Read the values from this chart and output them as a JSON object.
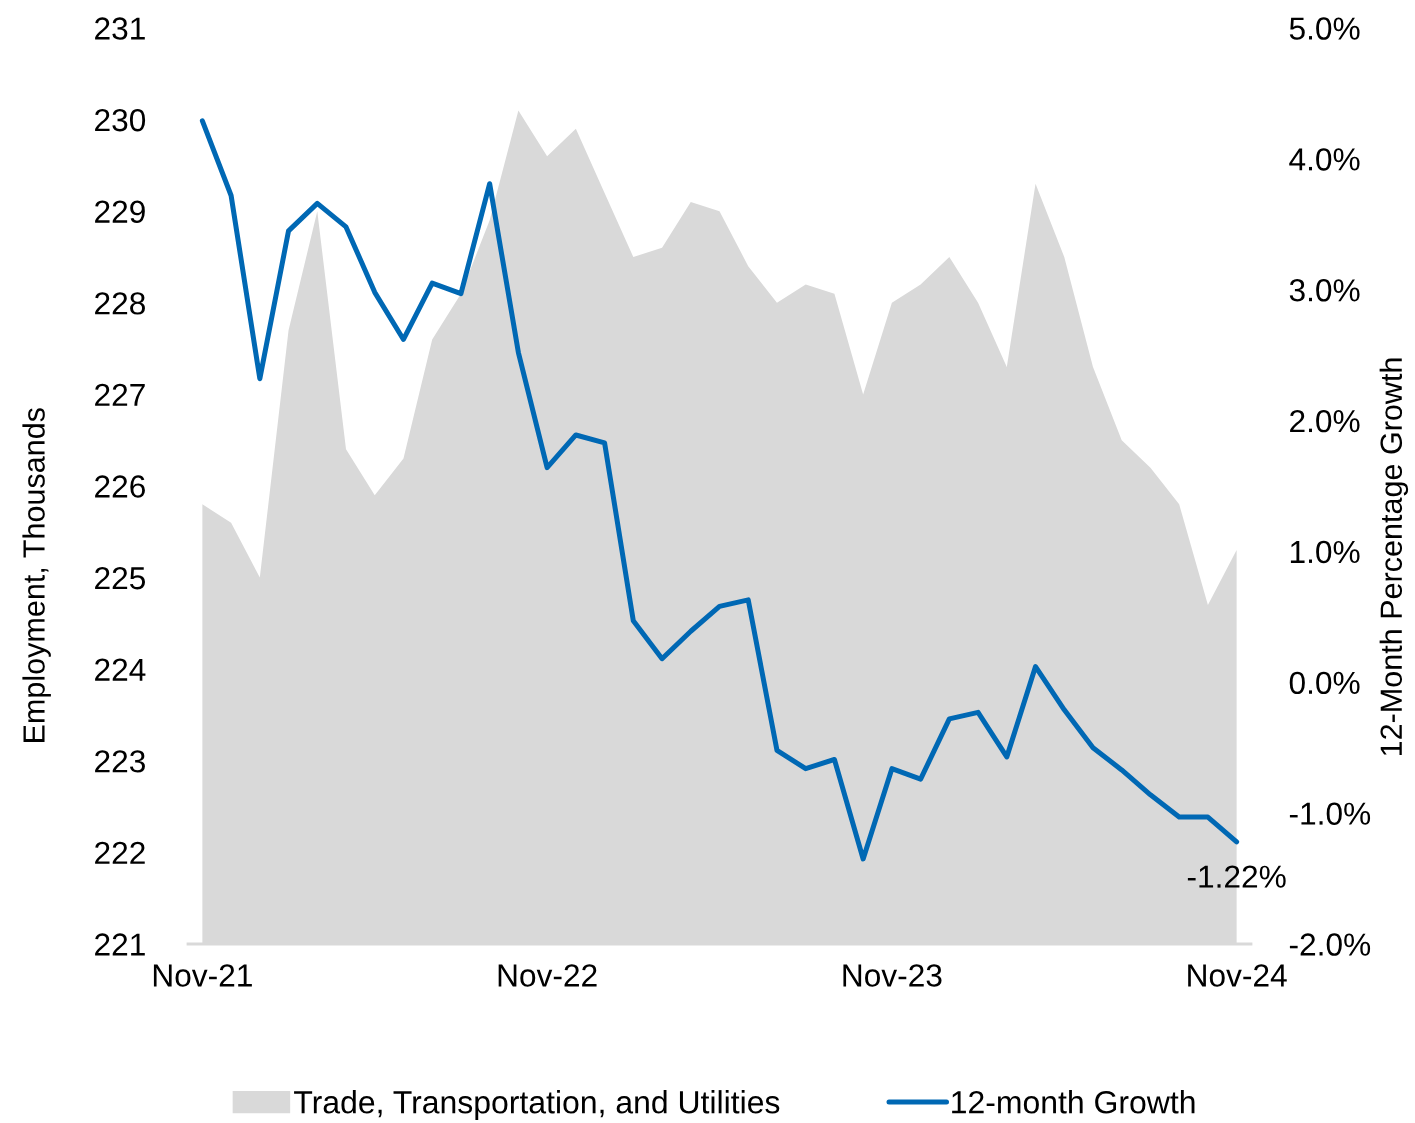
{
  "chart_data": {
    "type": "area",
    "categories": [
      "Nov-21",
      null,
      null,
      null,
      null,
      null,
      null,
      null,
      null,
      null,
      null,
      null,
      "Nov-22",
      null,
      null,
      null,
      null,
      null,
      null,
      null,
      null,
      null,
      null,
      null,
      "Nov-23",
      null,
      null,
      null,
      null,
      null,
      null,
      null,
      null,
      null,
      null,
      null,
      "Nov-24"
    ],
    "series": [
      {
        "name": "Trade, Transportation, and Utilities",
        "color": "#d9d9d9",
        "values": [
          225.8,
          225.6,
          225.0,
          227.7,
          229.0,
          226.4,
          225.9,
          226.3,
          227.6,
          228.1,
          228.9,
          230.1,
          229.6,
          229.9,
          229.2,
          228.5,
          228.6,
          229.1,
          229.0,
          228.4,
          228.0,
          228.2,
          228.1,
          227.0,
          228.0,
          228.2,
          228.5,
          228.0,
          227.3,
          229.3,
          228.5,
          227.3,
          226.5,
          226.2,
          225.8,
          224.7,
          225.3
        ]
      },
      {
        "name": "12-month Growth",
        "type": "line",
        "axis": "y2",
        "color": "#0068b4",
        "values": [
          4.29,
          3.72,
          2.32,
          3.45,
          3.66,
          3.48,
          2.98,
          2.62,
          3.05,
          2.97,
          3.81,
          2.52,
          1.64,
          1.89,
          1.83,
          0.47,
          0.18,
          0.39,
          0.58,
          0.63,
          -0.52,
          -0.66,
          -0.59,
          -1.35,
          -0.66,
          -0.74,
          -0.28,
          -0.23,
          -0.57,
          0.12,
          -0.21,
          -0.5,
          -0.67,
          -0.86,
          -1.03,
          -1.03,
          -1.22
        ],
        "value_labels": [
          null,
          null,
          null,
          null,
          null,
          null,
          null,
          null,
          null,
          null,
          null,
          null,
          null,
          null,
          null,
          null,
          null,
          null,
          null,
          null,
          null,
          null,
          null,
          null,
          null,
          null,
          null,
          null,
          null,
          null,
          null,
          null,
          null,
          null,
          null,
          null,
          "-1.22%"
        ]
      }
    ],
    "ylabel": "Employment, Thousands",
    "y2label": "12-Month Percentage Growth",
    "ylim": [
      221,
      231
    ],
    "yticks": [
      221,
      222,
      223,
      224,
      225,
      226,
      227,
      228,
      229,
      230,
      231
    ],
    "y2lim": [
      -2,
      5
    ],
    "y2ticks": [
      {
        "value": -2,
        "label": "-2.0%"
      },
      {
        "value": -1,
        "label": "-1.0%"
      },
      {
        "value": 0,
        "label": "0.0%"
      },
      {
        "value": 1,
        "label": "1.0%"
      },
      {
        "value": 2,
        "label": "2.0%"
      },
      {
        "value": 3,
        "label": "3.0%"
      },
      {
        "value": 4,
        "label": "4.0%"
      },
      {
        "value": 5,
        "label": "5.0%"
      }
    ],
    "legend": "bottom"
  }
}
